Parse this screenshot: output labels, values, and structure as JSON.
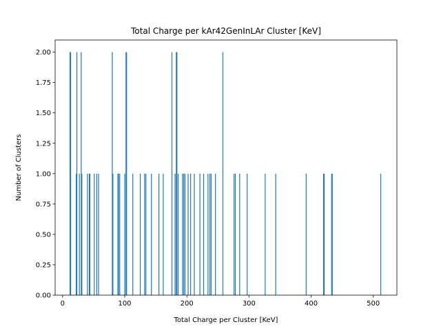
{
  "chart_data": {
    "type": "bar",
    "title": "Total Charge per kAr42GenInLAr Cluster [KeV]",
    "xlabel": "Total Charge per Cluster [KeV]",
    "ylabel": "Number of Clusters",
    "xlim": [
      -12,
      538
    ],
    "ylim": [
      0,
      2.1
    ],
    "bar_color": "#1f77b4",
    "x_ticks": [
      0,
      100,
      200,
      300,
      400,
      500
    ],
    "y_ticks": [
      "0.00",
      "0.25",
      "0.50",
      "0.75",
      "1.00",
      "1.25",
      "1.50",
      "1.75",
      "2.00"
    ],
    "x_tick_labels": [
      "0",
      "100",
      "200",
      "300",
      "400",
      "500"
    ],
    "bars": [
      {
        "x": 12,
        "y": 2
      },
      {
        "x": 13,
        "y": 2
      },
      {
        "x": 22,
        "y": 1
      },
      {
        "x": 23,
        "y": 2
      },
      {
        "x": 27,
        "y": 1
      },
      {
        "x": 30,
        "y": 2
      },
      {
        "x": 31,
        "y": 1
      },
      {
        "x": 40,
        "y": 1
      },
      {
        "x": 43,
        "y": 1
      },
      {
        "x": 44,
        "y": 1
      },
      {
        "x": 51,
        "y": 1
      },
      {
        "x": 55,
        "y": 1
      },
      {
        "x": 58,
        "y": 1
      },
      {
        "x": 80,
        "y": 2
      },
      {
        "x": 81,
        "y": 1
      },
      {
        "x": 89,
        "y": 1
      },
      {
        "x": 90,
        "y": 1
      },
      {
        "x": 92,
        "y": 1
      },
      {
        "x": 100,
        "y": 1
      },
      {
        "x": 102,
        "y": 2
      },
      {
        "x": 103,
        "y": 2
      },
      {
        "x": 113,
        "y": 1
      },
      {
        "x": 125,
        "y": 1
      },
      {
        "x": 132,
        "y": 1
      },
      {
        "x": 134,
        "y": 1
      },
      {
        "x": 143,
        "y": 1
      },
      {
        "x": 155,
        "y": 1
      },
      {
        "x": 162,
        "y": 1
      },
      {
        "x": 176,
        "y": 2
      },
      {
        "x": 181,
        "y": 1
      },
      {
        "x": 183,
        "y": 2
      },
      {
        "x": 184,
        "y": 2
      },
      {
        "x": 186,
        "y": 1
      },
      {
        "x": 193,
        "y": 1
      },
      {
        "x": 195,
        "y": 1
      },
      {
        "x": 197,
        "y": 1
      },
      {
        "x": 202,
        "y": 1
      },
      {
        "x": 206,
        "y": 1
      },
      {
        "x": 212,
        "y": 1
      },
      {
        "x": 221,
        "y": 1
      },
      {
        "x": 227,
        "y": 1
      },
      {
        "x": 234,
        "y": 1
      },
      {
        "x": 237,
        "y": 1
      },
      {
        "x": 239,
        "y": 1
      },
      {
        "x": 246,
        "y": 1
      },
      {
        "x": 258,
        "y": 2
      },
      {
        "x": 276,
        "y": 1
      },
      {
        "x": 278,
        "y": 1
      },
      {
        "x": 285,
        "y": 1
      },
      {
        "x": 297,
        "y": 1
      },
      {
        "x": 326,
        "y": 1
      },
      {
        "x": 343,
        "y": 1
      },
      {
        "x": 392,
        "y": 1
      },
      {
        "x": 420,
        "y": 1
      },
      {
        "x": 421,
        "y": 1
      },
      {
        "x": 433,
        "y": 1
      },
      {
        "x": 434,
        "y": 1
      },
      {
        "x": 512,
        "y": 1
      }
    ]
  }
}
